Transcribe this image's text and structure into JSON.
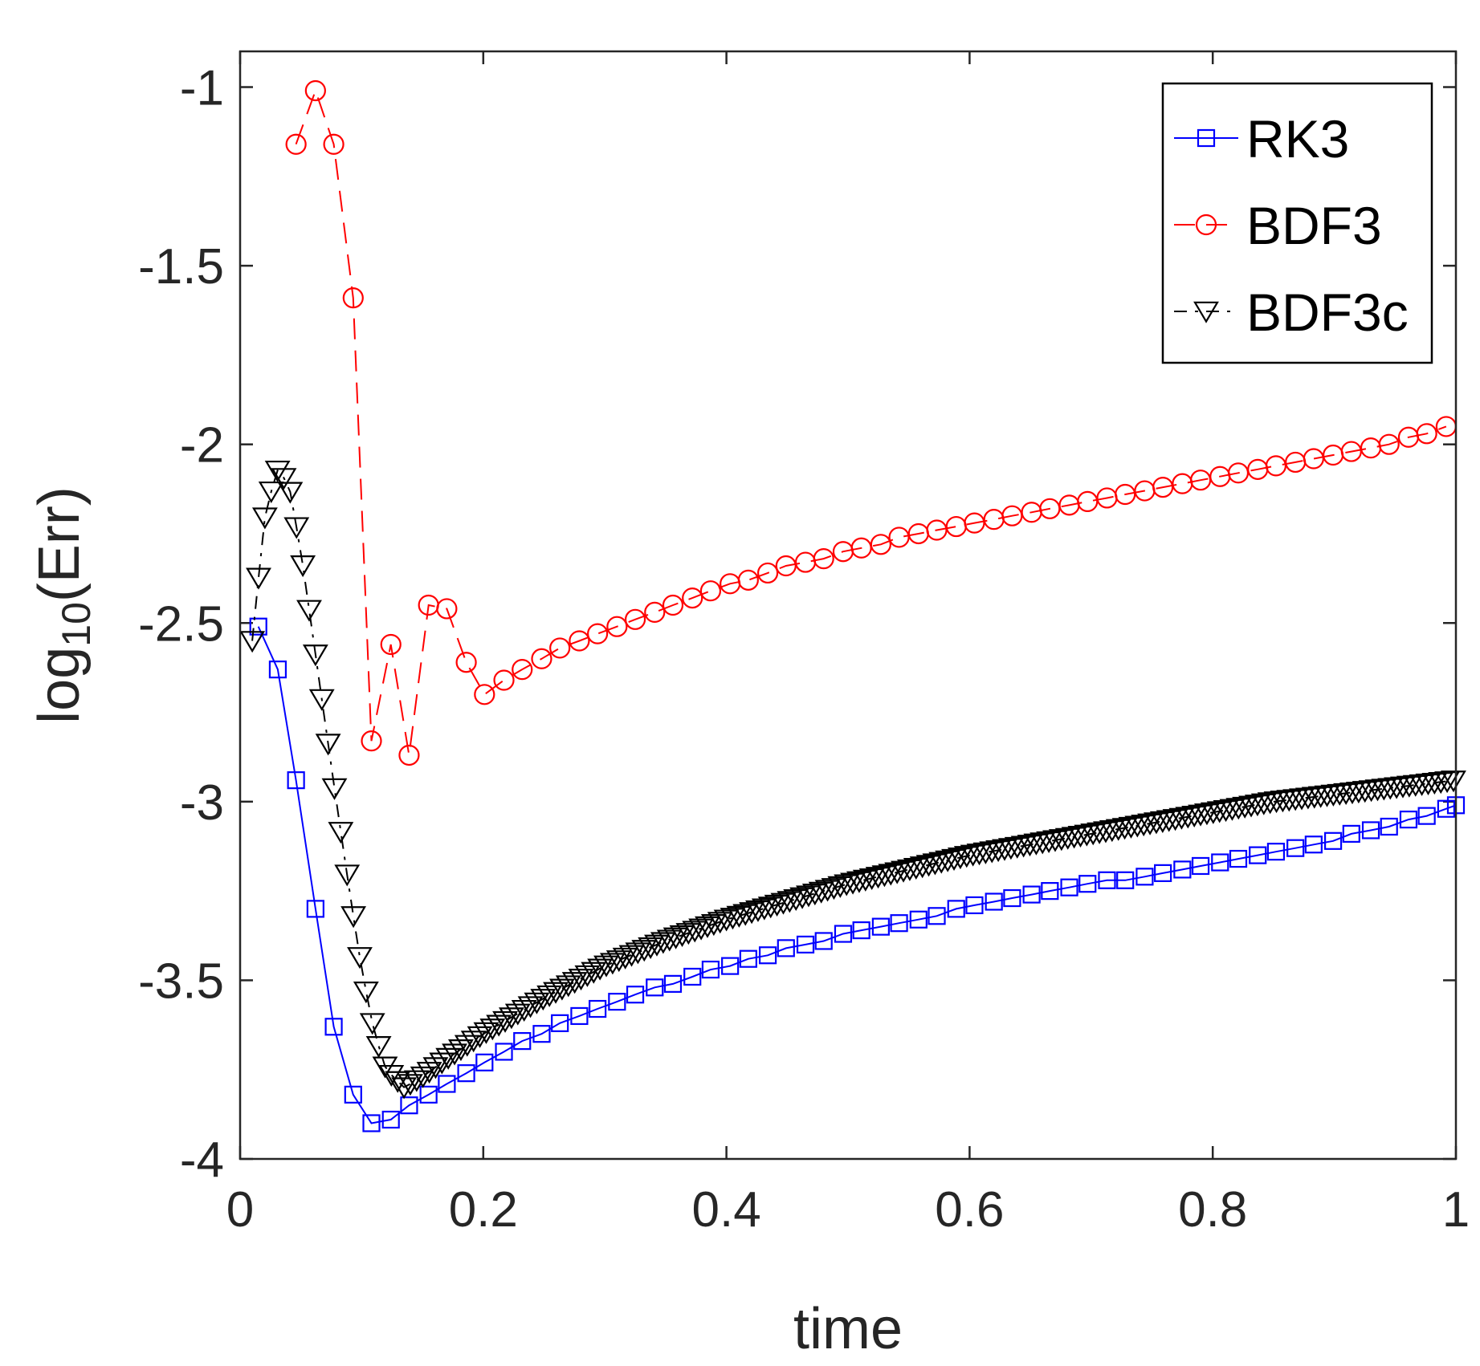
{
  "chart_data": {
    "type": "line",
    "title": "",
    "xlabel": "time",
    "ylabel": {
      "base": "log",
      "subscript": "10",
      "rest": "(Err)"
    },
    "xlim": [
      0,
      1
    ],
    "ylim": [
      -4,
      -0.9
    ],
    "xticks": [
      0,
      0.2,
      0.4,
      0.6,
      0.8,
      1
    ],
    "xtick_labels": [
      "0",
      "0.2",
      "0.4",
      "0.6",
      "0.8",
      "1"
    ],
    "yticks": [
      -4,
      -3.5,
      -3,
      -2.5,
      -2,
      -1.5,
      -1
    ],
    "ytick_labels": [
      "-4",
      "-3.5",
      "-3",
      "-2.5",
      "-2",
      "-1.5",
      "-1"
    ],
    "grid": false,
    "legend_position": "top-right",
    "series": [
      {
        "name": "RK3",
        "color": "#0000ff",
        "marker": "square",
        "line_style": "solid",
        "points": [
          [
            0.015,
            -2.51
          ],
          [
            0.031,
            -2.63
          ],
          [
            0.046,
            -2.94
          ],
          [
            0.062,
            -3.3
          ],
          [
            0.077,
            -3.63
          ],
          [
            0.093,
            -3.82
          ],
          [
            0.108,
            -3.9
          ],
          [
            0.124,
            -3.89
          ],
          [
            0.139,
            -3.85
          ],
          [
            0.155,
            -3.82
          ],
          [
            0.17,
            -3.79
          ],
          [
            0.186,
            -3.76
          ],
          [
            0.201,
            -3.73
          ],
          [
            0.217,
            -3.7
          ],
          [
            0.232,
            -3.67
          ],
          [
            0.248,
            -3.65
          ],
          [
            0.263,
            -3.62
          ],
          [
            0.279,
            -3.6
          ],
          [
            0.294,
            -3.58
          ],
          [
            0.31,
            -3.56
          ],
          [
            0.325,
            -3.54
          ],
          [
            0.341,
            -3.52
          ],
          [
            0.356,
            -3.51
          ],
          [
            0.372,
            -3.49
          ],
          [
            0.387,
            -3.47
          ],
          [
            0.403,
            -3.46
          ],
          [
            0.418,
            -3.44
          ],
          [
            0.434,
            -3.43
          ],
          [
            0.449,
            -3.41
          ],
          [
            0.465,
            -3.4
          ],
          [
            0.48,
            -3.39
          ],
          [
            0.496,
            -3.37
          ],
          [
            0.511,
            -3.36
          ],
          [
            0.527,
            -3.35
          ],
          [
            0.542,
            -3.34
          ],
          [
            0.558,
            -3.33
          ],
          [
            0.573,
            -3.32
          ],
          [
            0.589,
            -3.3
          ],
          [
            0.604,
            -3.29
          ],
          [
            0.62,
            -3.28
          ],
          [
            0.635,
            -3.27
          ],
          [
            0.651,
            -3.26
          ],
          [
            0.666,
            -3.25
          ],
          [
            0.682,
            -3.24
          ],
          [
            0.697,
            -3.23
          ],
          [
            0.713,
            -3.22
          ],
          [
            0.728,
            -3.22
          ],
          [
            0.744,
            -3.21
          ],
          [
            0.759,
            -3.2
          ],
          [
            0.775,
            -3.19
          ],
          [
            0.79,
            -3.18
          ],
          [
            0.806,
            -3.17
          ],
          [
            0.821,
            -3.16
          ],
          [
            0.837,
            -3.15
          ],
          [
            0.852,
            -3.14
          ],
          [
            0.868,
            -3.13
          ],
          [
            0.883,
            -3.12
          ],
          [
            0.899,
            -3.11
          ],
          [
            0.914,
            -3.09
          ],
          [
            0.93,
            -3.08
          ],
          [
            0.945,
            -3.07
          ],
          [
            0.961,
            -3.05
          ],
          [
            0.976,
            -3.04
          ],
          [
            0.992,
            -3.02
          ],
          [
            1.0,
            -3.01
          ]
        ]
      },
      {
        "name": "BDF3",
        "color": "#ff0000",
        "marker": "circle",
        "line_style": "dashed",
        "points": [
          [
            0.046,
            -1.16
          ],
          [
            0.062,
            -1.01
          ],
          [
            0.077,
            -1.16
          ],
          [
            0.093,
            -1.59
          ],
          [
            0.108,
            -2.83
          ],
          [
            0.124,
            -2.56
          ],
          [
            0.139,
            -2.87
          ],
          [
            0.155,
            -2.45
          ],
          [
            0.17,
            -2.46
          ],
          [
            0.186,
            -2.61
          ],
          [
            0.201,
            -2.7
          ],
          [
            0.217,
            -2.66
          ],
          [
            0.232,
            -2.63
          ],
          [
            0.248,
            -2.6
          ],
          [
            0.263,
            -2.57
          ],
          [
            0.279,
            -2.55
          ],
          [
            0.294,
            -2.53
          ],
          [
            0.31,
            -2.51
          ],
          [
            0.325,
            -2.49
          ],
          [
            0.341,
            -2.47
          ],
          [
            0.356,
            -2.45
          ],
          [
            0.372,
            -2.43
          ],
          [
            0.387,
            -2.41
          ],
          [
            0.403,
            -2.39
          ],
          [
            0.418,
            -2.38
          ],
          [
            0.434,
            -2.36
          ],
          [
            0.449,
            -2.34
          ],
          [
            0.465,
            -2.33
          ],
          [
            0.48,
            -2.32
          ],
          [
            0.496,
            -2.3
          ],
          [
            0.511,
            -2.29
          ],
          [
            0.527,
            -2.28
          ],
          [
            0.542,
            -2.26
          ],
          [
            0.558,
            -2.25
          ],
          [
            0.573,
            -2.24
          ],
          [
            0.589,
            -2.23
          ],
          [
            0.604,
            -2.22
          ],
          [
            0.62,
            -2.21
          ],
          [
            0.635,
            -2.2
          ],
          [
            0.651,
            -2.19
          ],
          [
            0.666,
            -2.18
          ],
          [
            0.682,
            -2.17
          ],
          [
            0.697,
            -2.16
          ],
          [
            0.713,
            -2.15
          ],
          [
            0.728,
            -2.14
          ],
          [
            0.744,
            -2.13
          ],
          [
            0.759,
            -2.12
          ],
          [
            0.775,
            -2.11
          ],
          [
            0.79,
            -2.1
          ],
          [
            0.806,
            -2.09
          ],
          [
            0.821,
            -2.08
          ],
          [
            0.837,
            -2.07
          ],
          [
            0.852,
            -2.06
          ],
          [
            0.868,
            -2.05
          ],
          [
            0.883,
            -2.04
          ],
          [
            0.899,
            -2.03
          ],
          [
            0.914,
            -2.02
          ],
          [
            0.93,
            -2.01
          ],
          [
            0.945,
            -2.0
          ],
          [
            0.961,
            -1.98
          ],
          [
            0.976,
            -1.97
          ],
          [
            0.992,
            -1.95
          ]
        ]
      },
      {
        "name": "BDF3c",
        "color": "#000000",
        "marker": "triangle-down",
        "line_style": "dashdot",
        "peak": {
          "x": 0.03,
          "y": -2.07
        },
        "min": {
          "x": 0.135,
          "y": -3.8
        },
        "key_points": [
          [
            0.01,
            -2.55
          ],
          [
            0.02,
            -2.21
          ],
          [
            0.03,
            -2.07
          ],
          [
            0.04,
            -2.11
          ],
          [
            0.05,
            -2.3
          ],
          [
            0.06,
            -2.54
          ],
          [
            0.07,
            -2.78
          ],
          [
            0.08,
            -3.02
          ],
          [
            0.09,
            -3.25
          ],
          [
            0.1,
            -3.47
          ],
          [
            0.11,
            -3.64
          ],
          [
            0.12,
            -3.75
          ],
          [
            0.135,
            -3.8
          ],
          [
            0.15,
            -3.77
          ],
          [
            0.17,
            -3.72
          ],
          [
            0.2,
            -3.65
          ],
          [
            0.25,
            -3.55
          ],
          [
            0.3,
            -3.46
          ],
          [
            0.35,
            -3.39
          ],
          [
            0.4,
            -3.33
          ],
          [
            0.45,
            -3.28
          ],
          [
            0.5,
            -3.23
          ],
          [
            0.55,
            -3.19
          ],
          [
            0.6,
            -3.15
          ],
          [
            0.65,
            -3.12
          ],
          [
            0.7,
            -3.09
          ],
          [
            0.75,
            -3.06
          ],
          [
            0.8,
            -3.03
          ],
          [
            0.85,
            -3.0
          ],
          [
            0.9,
            -2.98
          ],
          [
            0.95,
            -2.96
          ],
          [
            1.0,
            -2.94
          ]
        ]
      }
    ]
  }
}
